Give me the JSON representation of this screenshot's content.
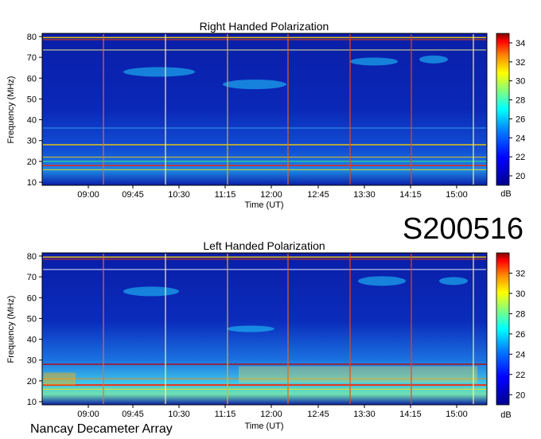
{
  "event_id": "S200516",
  "observatory": "Nancay Decameter Array",
  "colors": {
    "low": "#00008f",
    "mid": "#00c8ff",
    "high": "#ff0000",
    "top": "#800000"
  },
  "chart_data": [
    {
      "type": "heatmap",
      "title": "Right Handed Polarization",
      "xlabel": "Time (UT)",
      "ylabel": "Frequency (MHz)",
      "x_ticks": [
        "09:00",
        "09:45",
        "10:30",
        "11:15",
        "12:00",
        "12:45",
        "13:30",
        "14:15",
        "15:00"
      ],
      "y_ticks": [
        10,
        20,
        30,
        40,
        50,
        60,
        70,
        80
      ],
      "ylim": [
        10,
        80
      ],
      "colorbar": {
        "label": "dB",
        "ticks": [
          20,
          22,
          24,
          26,
          28,
          30,
          32,
          34
        ],
        "range": [
          19,
          35
        ]
      }
    },
    {
      "type": "heatmap",
      "title": "Left Handed Polarization",
      "xlabel": "Time (UT)",
      "ylabel": "Frequency (MHz)",
      "x_ticks": [
        "09:00",
        "09:45",
        "10:30",
        "11:15",
        "12:00",
        "12:45",
        "13:30",
        "14:15",
        "15:00"
      ],
      "y_ticks": [
        10,
        20,
        30,
        40,
        50,
        60,
        70,
        80
      ],
      "ylim": [
        10,
        80
      ],
      "colorbar": {
        "label": "dB",
        "ticks": [
          20,
          22,
          24,
          26,
          28,
          30,
          32
        ],
        "range": [
          19,
          34
        ]
      }
    }
  ]
}
